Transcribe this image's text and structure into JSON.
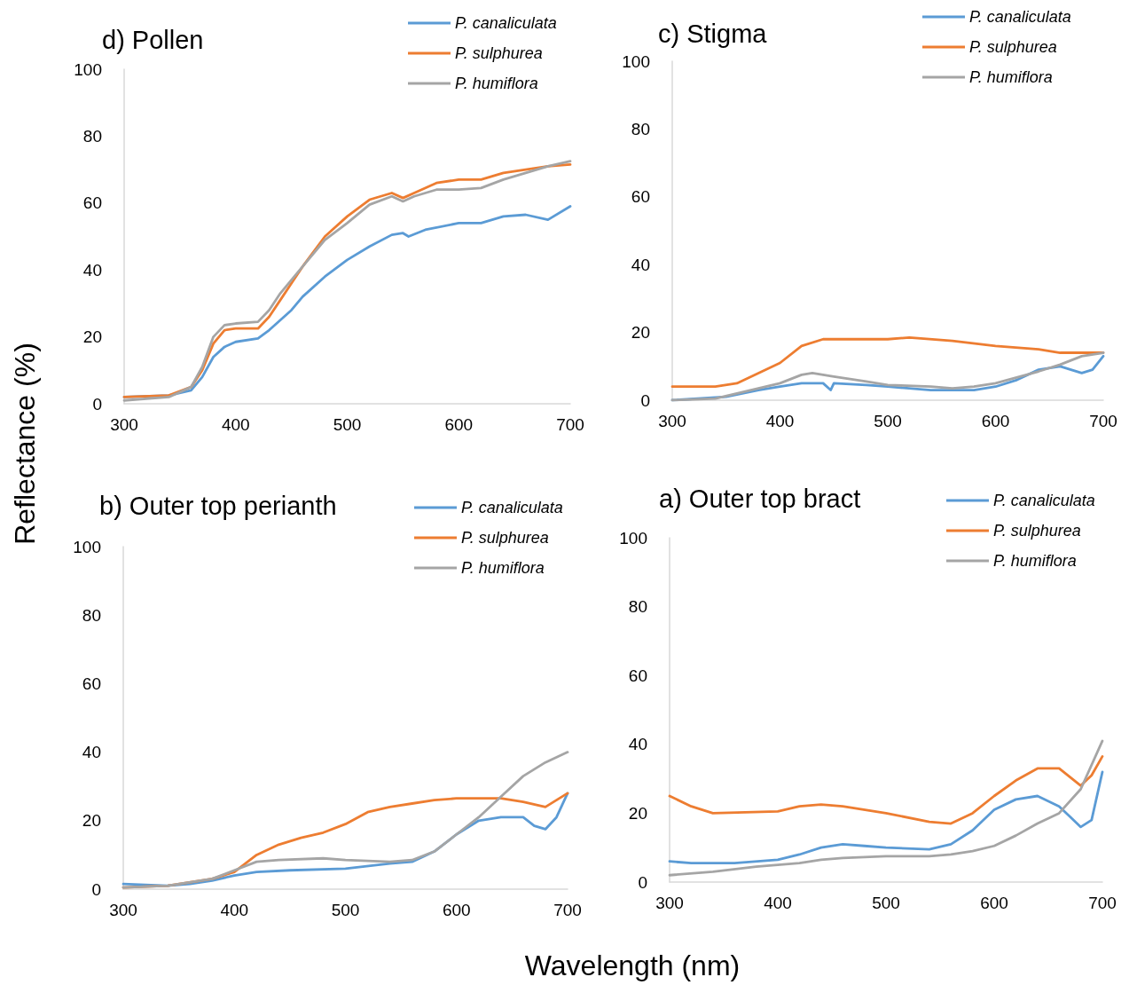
{
  "chart_data": [
    {
      "type": "line",
      "title": "d) Pollen",
      "ylabel": "Reflectance (%)",
      "xlim": [
        300,
        700
      ],
      "xticks": [
        300,
        400,
        500,
        600,
        700
      ],
      "ylim": [
        0,
        100
      ],
      "yticks": [
        0,
        20,
        40,
        60,
        80,
        100
      ],
      "grid": false,
      "legend": "top right",
      "marker": "none",
      "line_style": "solid",
      "series": [
        {
          "name": "P. canaliculata",
          "color": "#5b9bd5",
          "x": [
            300,
            340,
            360,
            370,
            380,
            390,
            400,
            420,
            430,
            440,
            450,
            460,
            480,
            500,
            520,
            540,
            550,
            555,
            570,
            600,
            620,
            640,
            660,
            680,
            700
          ],
          "values": [
            2,
            2.5,
            4,
            8,
            14,
            17,
            18.5,
            19.5,
            22,
            25,
            28,
            32,
            38,
            43,
            47,
            50.5,
            51,
            50,
            52,
            54,
            54,
            56,
            56.5,
            55,
            59
          ]
        },
        {
          "name": "P. sulphurea",
          "color": "#ed7d31",
          "x": [
            300,
            340,
            360,
            370,
            380,
            390,
            400,
            420,
            430,
            440,
            450,
            460,
            480,
            500,
            520,
            540,
            550,
            560,
            580,
            600,
            620,
            640,
            660,
            680,
            700
          ],
          "values": [
            2,
            2.5,
            5,
            10,
            18,
            22,
            22.5,
            22.5,
            26,
            31,
            36,
            41,
            50,
            56,
            61,
            63,
            61.5,
            63,
            66,
            67,
            67,
            69,
            70,
            71,
            71.5
          ]
        },
        {
          "name": "P. humiflora",
          "color": "#a5a5a5",
          "x": [
            300,
            340,
            360,
            370,
            380,
            390,
            400,
            420,
            430,
            440,
            460,
            480,
            500,
            520,
            540,
            550,
            560,
            580,
            600,
            620,
            640,
            660,
            680,
            700
          ],
          "values": [
            1,
            2,
            5,
            11,
            20,
            23.5,
            24,
            24.5,
            28,
            33,
            41,
            49,
            54,
            59.5,
            62,
            60.5,
            62,
            64,
            64,
            64.5,
            67,
            69,
            71,
            72.5
          ]
        }
      ]
    },
    {
      "type": "line",
      "title": "c) Stigma",
      "xlim": [
        300,
        700
      ],
      "xticks": [
        300,
        400,
        500,
        600,
        700
      ],
      "ylim": [
        0,
        100
      ],
      "yticks": [
        0,
        20,
        40,
        60,
        80,
        100
      ],
      "grid": false,
      "legend": "top right",
      "marker": "none",
      "line_style": "solid",
      "series": [
        {
          "name": "P. canaliculata",
          "color": "#5b9bd5",
          "x": [
            300,
            350,
            380,
            400,
            420,
            440,
            447,
            450,
            480,
            500,
            540,
            560,
            580,
            600,
            620,
            640,
            660,
            680,
            690,
            700
          ],
          "values": [
            0,
            1,
            3,
            4,
            5,
            5,
            3,
            5,
            4.5,
            4,
            3,
            3,
            3,
            4,
            6,
            9,
            10,
            8,
            9,
            13
          ]
        },
        {
          "name": "P. sulphurea",
          "color": "#ed7d31",
          "x": [
            300,
            340,
            360,
            380,
            400,
            420,
            440,
            500,
            520,
            560,
            600,
            640,
            660,
            680,
            700
          ],
          "values": [
            4,
            4,
            5,
            8,
            11,
            16,
            18,
            18,
            18.5,
            17.5,
            16,
            15,
            14,
            14,
            14
          ]
        },
        {
          "name": "P. humiflora",
          "color": "#a5a5a5",
          "x": [
            300,
            340,
            360,
            380,
            400,
            420,
            430,
            450,
            480,
            500,
            540,
            560,
            580,
            600,
            640,
            660,
            680,
            700
          ],
          "values": [
            0,
            0.5,
            2,
            3.5,
            5,
            7.5,
            8,
            7,
            5.5,
            4.5,
            4,
            3.5,
            4,
            5,
            8.5,
            10.5,
            13,
            14
          ]
        }
      ]
    },
    {
      "type": "line",
      "title": "b) Outer top perianth",
      "xlim": [
        300,
        700
      ],
      "xticks": [
        300,
        400,
        500,
        600,
        700
      ],
      "ylim": [
        0,
        100
      ],
      "yticks": [
        0,
        20,
        40,
        60,
        80,
        100
      ],
      "grid": false,
      "legend": "top right",
      "marker": "none",
      "line_style": "solid",
      "series": [
        {
          "name": "P. canaliculata",
          "color": "#5b9bd5",
          "x": [
            300,
            340,
            360,
            380,
            400,
            420,
            450,
            500,
            540,
            560,
            580,
            600,
            620,
            640,
            660,
            670,
            680,
            690,
            700
          ],
          "values": [
            1.5,
            1,
            1.5,
            2.5,
            4,
            5,
            5.5,
            6,
            7.5,
            8,
            11,
            16,
            20,
            21,
            21,
            18.5,
            17.5,
            21,
            28
          ]
        },
        {
          "name": "P. sulphurea",
          "color": "#ed7d31",
          "x": [
            300,
            340,
            380,
            400,
            420,
            440,
            460,
            480,
            500,
            520,
            540,
            560,
            580,
            600,
            640,
            660,
            680,
            690,
            700
          ],
          "values": [
            0.5,
            1,
            3,
            5,
            10,
            13,
            15,
            16.5,
            19,
            22.5,
            24,
            25,
            26,
            26.5,
            26.5,
            25.5,
            24,
            26,
            28
          ]
        },
        {
          "name": "P. humiflora",
          "color": "#a5a5a5",
          "x": [
            300,
            340,
            380,
            400,
            420,
            440,
            480,
            500,
            540,
            560,
            580,
            600,
            620,
            640,
            660,
            680,
            700
          ],
          "values": [
            0.5,
            1,
            3,
            5.5,
            8,
            8.5,
            9,
            8.5,
            8,
            8.5,
            11,
            16,
            21,
            27,
            33,
            37,
            40
          ]
        }
      ]
    },
    {
      "type": "line",
      "title": "a) Outer top bract",
      "xlabel": "Wavelength (nm)",
      "xlim": [
        300,
        700
      ],
      "xticks": [
        300,
        400,
        500,
        600,
        700
      ],
      "ylim": [
        0,
        100
      ],
      "yticks": [
        0,
        20,
        40,
        60,
        80,
        100
      ],
      "grid": false,
      "legend": "top right",
      "marker": "none",
      "line_style": "solid",
      "series": [
        {
          "name": "P. canaliculata",
          "color": "#5b9bd5",
          "x": [
            300,
            320,
            360,
            400,
            420,
            440,
            460,
            480,
            500,
            540,
            560,
            580,
            600,
            620,
            640,
            660,
            670,
            680,
            690,
            700
          ],
          "values": [
            6,
            5.5,
            5.5,
            6.5,
            8,
            10,
            11,
            10.5,
            10,
            9.5,
            11,
            15,
            21,
            24,
            25,
            22,
            19,
            16,
            18,
            32
          ]
        },
        {
          "name": "P. sulphurea",
          "color": "#ed7d31",
          "x": [
            300,
            320,
            340,
            400,
            420,
            440,
            460,
            500,
            540,
            560,
            580,
            600,
            620,
            640,
            660,
            680,
            690,
            700
          ],
          "values": [
            25,
            22,
            20,
            20.5,
            22,
            22.5,
            22,
            20,
            17.5,
            17,
            20,
            25,
            29.5,
            33,
            33,
            28,
            31,
            36.5
          ]
        },
        {
          "name": "P. humiflora",
          "color": "#a5a5a5",
          "x": [
            300,
            340,
            380,
            420,
            440,
            460,
            500,
            540,
            560,
            580,
            600,
            620,
            640,
            660,
            680,
            700
          ],
          "values": [
            2,
            3,
            4.5,
            5.5,
            6.5,
            7,
            7.5,
            7.5,
            8,
            9,
            10.5,
            13.5,
            17,
            20,
            27,
            41
          ]
        }
      ]
    }
  ]
}
